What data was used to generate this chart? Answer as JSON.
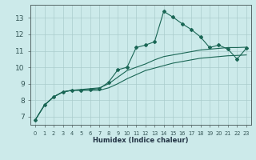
{
  "xlabel": "Humidex (Indice chaleur)",
  "bg_color": "#cceaea",
  "grid_color": "#aacccc",
  "line_color": "#1a6655",
  "spine_color": "#556666",
  "xlim": [
    -0.5,
    23.5
  ],
  "ylim": [
    6.5,
    13.8
  ],
  "yticks": [
    7,
    8,
    9,
    10,
    11,
    12,
    13
  ],
  "xticks": [
    0,
    1,
    2,
    3,
    4,
    5,
    6,
    7,
    8,
    9,
    10,
    11,
    12,
    13,
    14,
    15,
    16,
    17,
    18,
    19,
    20,
    21,
    22,
    23
  ],
  "line1_x": [
    0,
    1,
    2,
    3,
    4,
    5,
    6,
    7,
    8,
    9,
    10,
    11,
    12,
    13,
    14,
    15,
    16,
    17,
    18,
    19,
    20,
    21,
    22,
    23
  ],
  "line1_y": [
    6.8,
    7.7,
    8.2,
    8.5,
    8.6,
    8.6,
    8.65,
    8.7,
    9.1,
    9.85,
    10.0,
    11.2,
    11.35,
    11.55,
    13.4,
    13.05,
    12.65,
    12.3,
    11.85,
    11.2,
    11.35,
    11.1,
    10.5,
    11.15
  ],
  "line2_x": [
    0,
    1,
    2,
    3,
    4,
    5,
    6,
    7,
    8,
    9,
    10,
    11,
    12,
    13,
    14,
    15,
    16,
    17,
    18,
    19,
    20,
    21,
    22,
    23
  ],
  "line2_y": [
    6.8,
    7.7,
    8.2,
    8.5,
    8.6,
    8.65,
    8.7,
    8.75,
    9.0,
    9.4,
    9.8,
    10.0,
    10.2,
    10.45,
    10.65,
    10.75,
    10.85,
    10.95,
    11.05,
    11.1,
    11.15,
    11.2,
    11.2,
    11.22
  ],
  "line3_x": [
    0,
    1,
    2,
    3,
    4,
    5,
    6,
    7,
    8,
    9,
    10,
    11,
    12,
    13,
    14,
    15,
    16,
    17,
    18,
    19,
    20,
    21,
    22,
    23
  ],
  "line3_y": [
    6.8,
    7.7,
    8.2,
    8.5,
    8.6,
    8.6,
    8.6,
    8.6,
    8.75,
    9.0,
    9.3,
    9.55,
    9.8,
    9.95,
    10.1,
    10.25,
    10.35,
    10.45,
    10.55,
    10.6,
    10.65,
    10.7,
    10.72,
    10.75
  ],
  "tick_color": "#335555",
  "xlabel_color": "#223344",
  "xlabel_fontsize": 6.0,
  "ytick_fontsize": 6.5,
  "xtick_fontsize": 4.8,
  "marker_size": 2.0,
  "linewidth": 0.8
}
